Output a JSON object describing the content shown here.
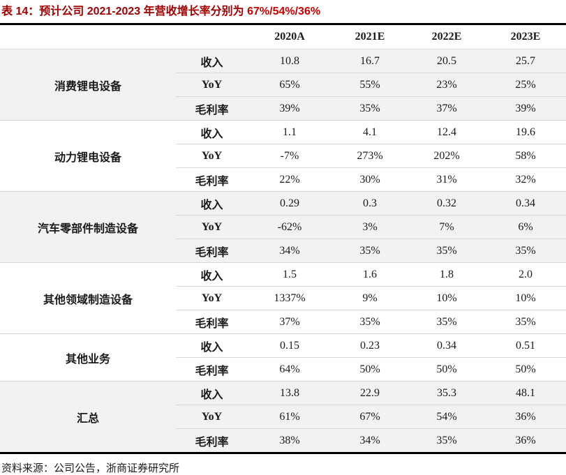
{
  "title": {
    "prefix": "表 14：预计公司 2021-2023 年营收增长率分别为 ",
    "highlight": "67%/54%/36%"
  },
  "colors": {
    "title_prefix": "#a00000",
    "title_highlight": "#c80000",
    "group_shade": "#f2f2f2",
    "thin_line": "#d9d9d9",
    "thick_line": "#000000"
  },
  "table": {
    "year_headers": [
      "2020A",
      "2021E",
      "2022E",
      "2023E"
    ],
    "groups": [
      {
        "name": "消费锂电设备",
        "shaded": true,
        "rows": [
          {
            "metric": "收入",
            "values": [
              "10.8",
              "16.7",
              "20.5",
              "25.7"
            ]
          },
          {
            "metric": "YoY",
            "values": [
              "65%",
              "55%",
              "23%",
              "25%"
            ]
          },
          {
            "metric": "毛利率",
            "values": [
              "39%",
              "35%",
              "37%",
              "39%"
            ]
          }
        ]
      },
      {
        "name": "动力锂电设备",
        "shaded": false,
        "rows": [
          {
            "metric": "收入",
            "values": [
              "1.1",
              "4.1",
              "12.4",
              "19.6"
            ]
          },
          {
            "metric": "YoY",
            "values": [
              "-7%",
              "273%",
              "202%",
              "58%"
            ]
          },
          {
            "metric": "毛利率",
            "values": [
              "22%",
              "30%",
              "31%",
              "32%"
            ]
          }
        ]
      },
      {
        "name": "汽车零部件制造设备",
        "shaded": true,
        "rows": [
          {
            "metric": "收入",
            "values": [
              "0.29",
              "0.3",
              "0.32",
              "0.34"
            ]
          },
          {
            "metric": "YoY",
            "values": [
              "-62%",
              "3%",
              "7%",
              "6%"
            ]
          },
          {
            "metric": "毛利率",
            "values": [
              "34%",
              "35%",
              "35%",
              "35%"
            ]
          }
        ]
      },
      {
        "name": "其他领域制造设备",
        "shaded": false,
        "rows": [
          {
            "metric": "收入",
            "values": [
              "1.5",
              "1.6",
              "1.8",
              "2.0"
            ]
          },
          {
            "metric": "YoY",
            "values": [
              "1337%",
              "9%",
              "10%",
              "10%"
            ]
          },
          {
            "metric": "毛利率",
            "values": [
              "37%",
              "35%",
              "35%",
              "35%"
            ]
          }
        ]
      },
      {
        "name": "其他业务",
        "shaded": false,
        "rows": [
          {
            "metric": "收入",
            "values": [
              "0.15",
              "0.23",
              "0.34",
              "0.51"
            ]
          },
          {
            "metric": "毛利率",
            "values": [
              "64%",
              "50%",
              "50%",
              "50%"
            ]
          }
        ]
      },
      {
        "name": "汇总",
        "shaded": true,
        "rows": [
          {
            "metric": "收入",
            "values": [
              "13.8",
              "22.9",
              "35.3",
              "48.1"
            ]
          },
          {
            "metric": "YoY",
            "values": [
              "61%",
              "67%",
              "54%",
              "36%"
            ]
          },
          {
            "metric": "毛利率",
            "values": [
              "38%",
              "34%",
              "35%",
              "36%"
            ]
          }
        ]
      }
    ]
  },
  "footer": {
    "source": "资料来源：公司公告，浙商证券研究所"
  }
}
